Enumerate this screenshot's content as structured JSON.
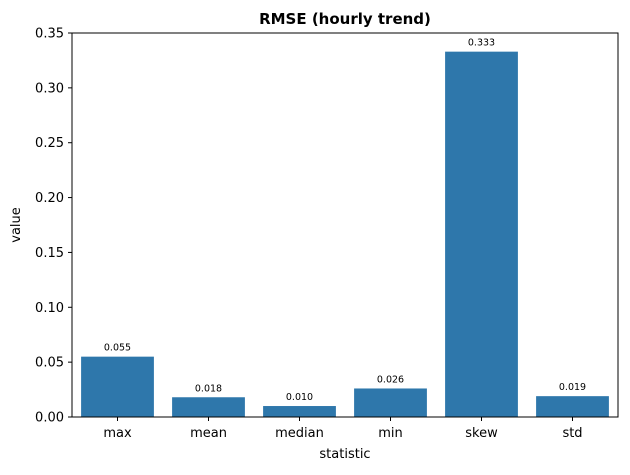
{
  "chart_data": {
    "type": "bar",
    "title": "RMSE (hourly trend)",
    "xlabel": "statistic",
    "ylabel": "value",
    "categories": [
      "max",
      "mean",
      "median",
      "min",
      "skew",
      "std"
    ],
    "values": [
      0.055,
      0.018,
      0.01,
      0.026,
      0.333,
      0.019
    ],
    "data_labels": [
      "0.055",
      "0.018",
      "0.010",
      "0.026",
      "0.333",
      "0.019"
    ],
    "ylim": [
      0,
      0.35
    ],
    "yticks": [
      0.0,
      0.05,
      0.1,
      0.15,
      0.2,
      0.25,
      0.3,
      0.35
    ],
    "ytick_labels": [
      "0.00",
      "0.05",
      "0.10",
      "0.15",
      "0.20",
      "0.25",
      "0.30",
      "0.35"
    ],
    "bar_color": "#2e77ab",
    "grid": false,
    "legend": "none"
  }
}
